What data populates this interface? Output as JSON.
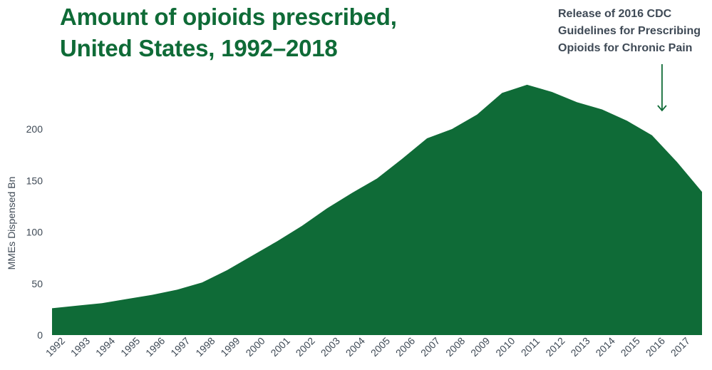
{
  "chart_data": {
    "type": "area",
    "title": "Amount of opioids prescribed, United States, 1992–2018",
    "title_lines": [
      "Amount of opioids prescribed,",
      "United States, 1992–2018"
    ],
    "ylabel": "MMEs Dispensed Bn",
    "xlabel": "",
    "ylim": [
      0,
      245
    ],
    "yticks": [
      0,
      50,
      100,
      150,
      200
    ],
    "grid": false,
    "x_tick_labels": [
      "1992",
      "1993",
      "1994",
      "1995",
      "1996",
      "1997",
      "1998",
      "1999",
      "2000",
      "2001",
      "2002",
      "2003",
      "2004",
      "2005",
      "2006",
      "2007",
      "2008",
      "2009",
      "2010",
      "2011",
      "2012",
      "2013",
      "2014",
      "2015",
      "2016",
      "2017"
    ],
    "x": [
      1992,
      1993,
      1994,
      1995,
      1996,
      1997,
      1998,
      1999,
      2000,
      2001,
      2002,
      2003,
      2004,
      2005,
      2006,
      2007,
      2008,
      2009,
      2010,
      2011,
      2012,
      2013,
      2014,
      2015,
      2016,
      2017,
      2018
    ],
    "series": [
      {
        "values": [
          26,
          28.5,
          31,
          35,
          39,
          44,
          51,
          63,
          77,
          91,
          106,
          123,
          138,
          152,
          171,
          191,
          200,
          214,
          235,
          243,
          236,
          226,
          219,
          208,
          194,
          168,
          139
        ]
      }
    ],
    "colors": {
      "fill": "#0f6b37",
      "title": "#0f6b37",
      "text": "#3f4a56",
      "arrow": "#0f6b37"
    },
    "annotations": [
      {
        "text_lines": [
          "Release of 2016 CDC",
          "Guidelines for Prescribing",
          "Opioids for Chronic Pain"
        ],
        "x": 2016.4
      }
    ]
  }
}
